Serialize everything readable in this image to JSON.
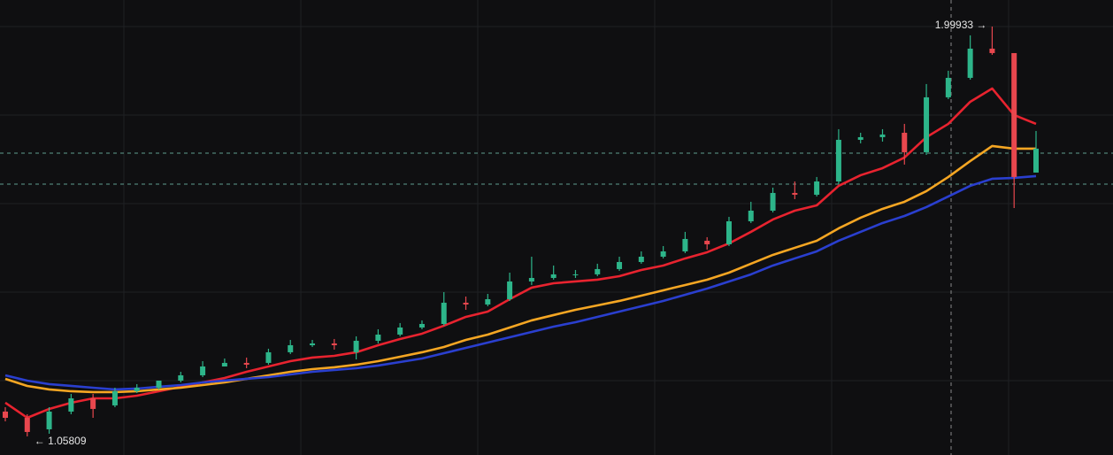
{
  "chart_data": {
    "type": "candlestick",
    "ylim": [
      1.0154,
      2.0603
    ],
    "up_color": "#2db58a",
    "down_color": "#e8474e",
    "candles": [
      [
        1.1151,
        1.1252,
        1.0927,
        1.1008
      ],
      [
        1.1008,
        1.109,
        1.05809,
        1.0683
      ],
      [
        1.0744,
        1.1252,
        1.0642,
        1.1151
      ],
      [
        1.1151,
        1.1557,
        1.109,
        1.1455
      ],
      [
        1.1455,
        1.1557,
        1.1008,
        1.1212
      ],
      [
        1.1293,
        1.1699,
        1.1252,
        1.1618
      ],
      [
        1.1618,
        1.1781,
        1.1577,
        1.1699
      ],
      [
        1.1699,
        1.1862,
        1.1659,
        1.1862
      ],
      [
        1.1862,
        1.2065,
        1.1821,
        1.1984
      ],
      [
        1.1984,
        1.2309,
        1.1943,
        1.2187
      ],
      [
        1.2187,
        1.237,
        1.2187,
        1.2269
      ],
      [
        1.2269,
        1.2391,
        1.2147,
        1.2228
      ],
      [
        1.2269,
        1.2594,
        1.2228,
        1.2513
      ],
      [
        1.2513,
        1.2797,
        1.2472,
        1.2675
      ],
      [
        1.2675,
        1.2797,
        1.2635,
        1.2716
      ],
      [
        1.2716,
        1.2818,
        1.2574,
        1.2675
      ],
      [
        1.2513,
        1.2879,
        1.235,
        1.2777
      ],
      [
        1.2777,
        1.3041,
        1.2716,
        1.2919
      ],
      [
        1.2919,
        1.3184,
        1.2879,
        1.3082
      ],
      [
        1.3082,
        1.3245,
        1.3041,
        1.3163
      ],
      [
        1.3163,
        1.3895,
        1.3123,
        1.3651
      ],
      [
        1.3651,
        1.3793,
        1.3488,
        1.361
      ],
      [
        1.361,
        1.3854,
        1.357,
        1.3732
      ],
      [
        1.3732,
        1.4342,
        1.3692,
        1.4139
      ],
      [
        1.4139,
        1.4708,
        1.4058,
        1.422
      ],
      [
        1.422,
        1.4505,
        1.418,
        1.4302
      ],
      [
        1.4302,
        1.4403,
        1.422,
        1.4302
      ],
      [
        1.4302,
        1.4546,
        1.4261,
        1.4424
      ],
      [
        1.4424,
        1.4708,
        1.4383,
        1.4586
      ],
      [
        1.4586,
        1.483,
        1.4546,
        1.4708
      ],
      [
        1.4708,
        1.4952,
        1.4668,
        1.483
      ],
      [
        1.483,
        1.5278,
        1.479,
        1.5115
      ],
      [
        1.5074,
        1.5156,
        1.4871,
        1.4993
      ],
      [
        1.4993,
        1.5623,
        1.4952,
        1.5521
      ],
      [
        1.5521,
        1.5969,
        1.5481,
        1.5765
      ],
      [
        1.5765,
        1.6294,
        1.5725,
        1.6172
      ],
      [
        1.6172,
        1.6436,
        1.603,
        1.6131
      ],
      [
        1.6131,
        1.6538,
        1.6091,
        1.6436
      ],
      [
        1.6436,
        1.7636,
        1.6375,
        1.7392
      ],
      [
        1.7392,
        1.7554,
        1.7311,
        1.7453
      ],
      [
        1.7453,
        1.7636,
        1.7351,
        1.7514
      ],
      [
        1.7554,
        1.7758,
        1.6823,
        1.7107
      ],
      [
        1.7107,
        1.8673,
        1.7046,
        1.8368
      ],
      [
        1.8368,
        1.8978,
        1.8327,
        1.8815
      ],
      [
        1.8815,
        1.9791,
        1.8774,
        1.9486
      ],
      [
        1.9486,
        1.99933,
        1.9344,
        1.9384
      ],
      [
        1.9384,
        1.9384,
        1.5826,
        1.6538
      ],
      [
        1.664,
        1.7595,
        1.664,
        1.7189
      ]
    ],
    "series": [
      {
        "color": "#e8232f",
        "values": [
          1.1354,
          1.1008,
          1.1212,
          1.1354,
          1.1455,
          1.1455,
          1.1516,
          1.1618,
          1.172,
          1.1821,
          1.1923,
          1.2065,
          1.2187,
          1.2309,
          1.2391,
          1.2431,
          1.2513,
          1.2675,
          1.2818,
          1.294,
          1.3123,
          1.3326,
          1.3448,
          1.3732,
          1.3997,
          1.4098,
          1.4139,
          1.418,
          1.4261,
          1.4403,
          1.4505,
          1.4668,
          1.481,
          1.5013,
          1.5278,
          1.5562,
          1.5765,
          1.5887,
          1.6335,
          1.6579,
          1.6741,
          1.6985,
          1.7453,
          1.7758,
          1.8266,
          1.8571,
          1.7961,
          1.7758
        ]
      },
      {
        "color": "#f5a623",
        "values": [
          1.1903,
          1.174,
          1.1659,
          1.1618,
          1.1598,
          1.1598,
          1.1618,
          1.1659,
          1.1699,
          1.176,
          1.1821,
          1.1903,
          1.1984,
          1.2065,
          1.2126,
          1.2167,
          1.2228,
          1.2309,
          1.2411,
          1.2513,
          1.2635,
          1.2797,
          1.2919,
          1.3082,
          1.3245,
          1.3367,
          1.3488,
          1.359,
          1.3692,
          1.3814,
          1.3936,
          1.4058,
          1.418,
          1.4342,
          1.4546,
          1.4749,
          1.4912,
          1.5074,
          1.5359,
          1.5603,
          1.5806,
          1.5969,
          1.6213,
          1.6538,
          1.6904,
          1.725,
          1.7189,
          1.7189
        ]
      },
      {
        "color": "#2a3fcf",
        "values": [
          1.1984,
          1.1862,
          1.1781,
          1.174,
          1.1699,
          1.1659,
          1.1679,
          1.172,
          1.176,
          1.1821,
          1.1862,
          1.1903,
          1.1943,
          1.2004,
          1.2065,
          1.2106,
          1.2147,
          1.2208,
          1.2289,
          1.237,
          1.2492,
          1.2614,
          1.2736,
          1.2858,
          1.298,
          1.3102,
          1.3204,
          1.3326,
          1.3448,
          1.357,
          1.3692,
          1.3834,
          1.3976,
          1.4139,
          1.4302,
          1.4505,
          1.4668,
          1.483,
          1.5074,
          1.5278,
          1.5481,
          1.5643,
          1.5847,
          1.6091,
          1.6335,
          1.6497,
          1.6518,
          1.6558
        ]
      }
    ],
    "price_lines": [
      1.7087,
      1.6375
    ],
    "annotations": [
      {
        "text": "1.99933 →",
        "candle": 45,
        "at": "high"
      },
      {
        "text": "← 1.05809",
        "candle": 1,
        "at": "low"
      }
    ]
  }
}
